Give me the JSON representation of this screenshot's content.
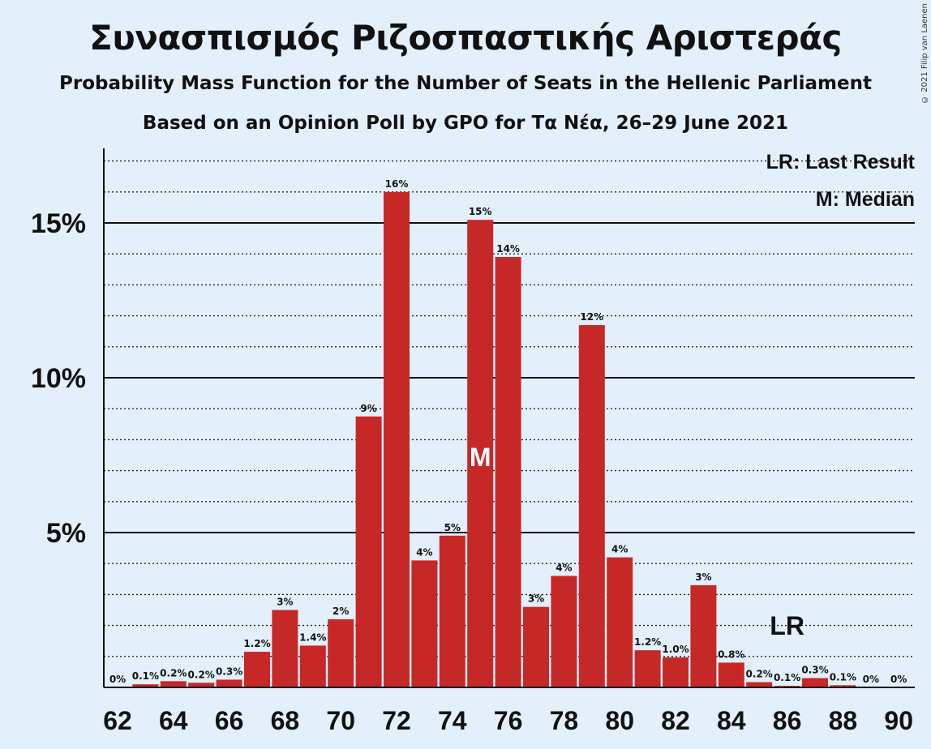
{
  "title": "Συνασπισμός Ριζοσπαστικής Αριστεράς",
  "subtitle1": "Probability Mass Function for the Number of Seats in the Hellenic Parliament",
  "subtitle2": "Based on an Opinion Poll by GPO for Τα Νέα, 26–29 June 2021",
  "copyright": "© 2021 Filip van Laenen",
  "legend": {
    "last_result": "LR: Last Result",
    "median": "M: Median"
  },
  "chart_data": {
    "type": "bar",
    "x": [
      62,
      63,
      64,
      65,
      66,
      67,
      68,
      69,
      70,
      71,
      72,
      73,
      74,
      75,
      76,
      77,
      78,
      79,
      80,
      81,
      82,
      83,
      84,
      85,
      86,
      87,
      88,
      89,
      90
    ],
    "values": [
      0.0,
      0.1,
      0.2,
      0.15,
      0.25,
      1.15,
      2.5,
      1.35,
      2.2,
      8.75,
      16.0,
      4.1,
      4.9,
      15.1,
      13.9,
      2.6,
      3.6,
      11.7,
      4.2,
      1.2,
      0.97,
      3.3,
      0.8,
      0.17,
      0.05,
      0.3,
      0.07,
      0.0,
      0.0
    ],
    "data_labels": [
      "0%",
      "0.1%",
      "0.2%",
      "0.2%",
      "0.3%",
      "1.2%",
      "3%",
      "1.4%",
      "2%",
      "9%",
      "16%",
      "4%",
      "5%",
      "15%",
      "14%",
      "3%",
      "4%",
      "12%",
      "4%",
      "1.2%",
      "1.0%",
      "3%",
      "0.8%",
      "0.2%",
      "0.1%",
      "0.3%",
      "0.1%",
      "0%",
      "0%"
    ],
    "x_tick_labels": [
      "62",
      "64",
      "66",
      "68",
      "70",
      "72",
      "74",
      "76",
      "78",
      "80",
      "82",
      "84",
      "86",
      "88",
      "90"
    ],
    "y_tick_labels": [
      "5%",
      "10%",
      "15%"
    ],
    "y_ticks": [
      5,
      10,
      15
    ],
    "ylim": [
      0,
      17.5
    ],
    "median_seat": 75,
    "median_marker": "M",
    "last_result_seat": 86,
    "last_result_marker": "LR",
    "bar_color": "#c62828",
    "background_color": "#e3f0fc",
    "grid_minor_step": 1,
    "legend_position": "top-right"
  }
}
